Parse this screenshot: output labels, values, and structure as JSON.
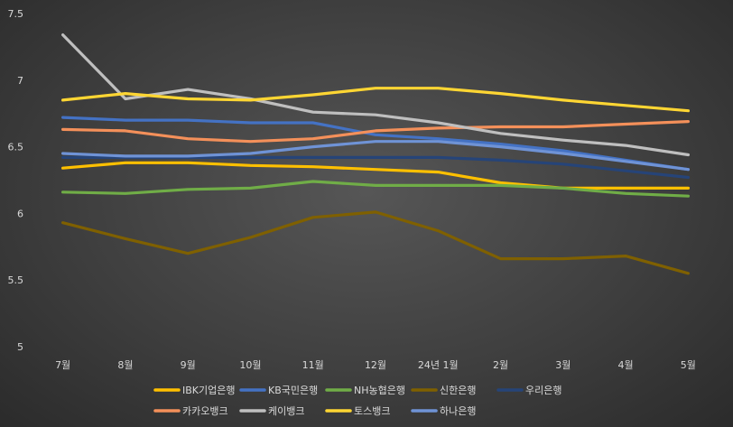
{
  "chart_data": {
    "type": "line",
    "categories": [
      "7월",
      "8월",
      "9월",
      "10월",
      "11월",
      "12월",
      "24년 1월",
      "2월",
      "3월",
      "4월",
      "5월"
    ],
    "ylim": [
      5,
      7.5
    ],
    "yticks": [
      "5",
      "5.5",
      "6",
      "6.5",
      "7",
      "7.5"
    ],
    "grid": false,
    "legend_position": "bottom",
    "series": [
      {
        "name": "IBK기업은행",
        "color": "#ffc000",
        "values": [
          6.34,
          6.38,
          6.38,
          6.36,
          6.35,
          6.33,
          6.31,
          6.23,
          6.19,
          6.19,
          6.19
        ]
      },
      {
        "name": "KB국민은행",
        "color": "#4472c4",
        "values": [
          6.72,
          6.7,
          6.7,
          6.68,
          6.68,
          6.59,
          6.56,
          6.52,
          6.47,
          6.4,
          6.33
        ]
      },
      {
        "name": "NH농협은행",
        "color": "#70ad47",
        "values": [
          6.16,
          6.15,
          6.18,
          6.19,
          6.24,
          6.21,
          6.21,
          6.21,
          6.19,
          6.15,
          6.13
        ]
      },
      {
        "name": "신한은행",
        "color": "#7f6000",
        "values": [
          5.93,
          5.81,
          5.7,
          5.82,
          5.97,
          6.01,
          5.87,
          5.66,
          5.66,
          5.68,
          5.55
        ]
      },
      {
        "name": "우리은행",
        "color": "#264478",
        "values": [
          6.42,
          6.42,
          6.42,
          6.42,
          6.42,
          6.42,
          6.42,
          6.4,
          6.37,
          6.32,
          6.27
        ]
      },
      {
        "name": "카카오뱅크",
        "color": "#f4905a",
        "values": [
          6.63,
          6.62,
          6.56,
          6.54,
          6.56,
          6.62,
          6.64,
          6.65,
          6.65,
          6.67,
          6.69
        ]
      },
      {
        "name": "케이뱅크",
        "color": "#bfbfbf",
        "values": [
          7.34,
          6.86,
          6.93,
          6.86,
          6.76,
          6.74,
          6.68,
          6.6,
          6.55,
          6.51,
          6.44
        ]
      },
      {
        "name": "토스뱅크",
        "color": "#ffd633",
        "values": [
          6.85,
          6.9,
          6.86,
          6.85,
          6.89,
          6.94,
          6.94,
          6.9,
          6.85,
          6.81,
          6.77
        ]
      },
      {
        "name": "하나은행",
        "color": "#6f93d6",
        "values": [
          6.45,
          6.43,
          6.43,
          6.45,
          6.5,
          6.54,
          6.54,
          6.5,
          6.45,
          6.39,
          6.33
        ]
      }
    ]
  }
}
